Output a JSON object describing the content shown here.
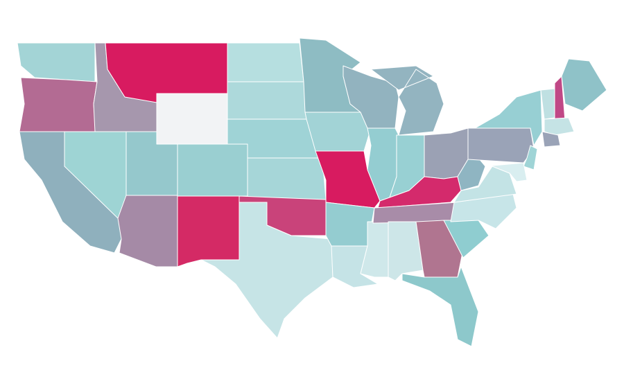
{
  "map": {
    "region_colors": [
      "#a3d4d6",
      "#b36b93",
      "#8fb0bd",
      "#a697ad",
      "#9ed4d4",
      "#d81b60",
      "#f2f3f5",
      "#95c8cc",
      "#9acfd1",
      "#a58aa6",
      "#d42a65",
      "#b6dfe0",
      "#add9db",
      "#9fd3d6",
      "#a6d6d8",
      "#c9437a",
      "#c6e4e6",
      "#8ebcc3",
      "#a2d3d6",
      "#d81b60",
      "#94ccd0",
      "#c5e3e6",
      "#92b3bf",
      "#94cdd1",
      "#cfe8ea",
      "#93b4c0",
      "#98d0d3",
      "#9ba1b4",
      "#d42a6c",
      "#a88ca8",
      "#cde6e8",
      "#b07590",
      "#8dc8cb",
      "#8fcdd0",
      "#c7e5e8",
      "#c3e3e5",
      "#8fb5c2",
      "#9aa3b7",
      "#97cfd3",
      "#9fd4d6",
      "#d9eef0",
      "#bfe0e2",
      "#c04886",
      "#8fc2c8",
      "#c5e3e5",
      "#9aa3b7"
    ]
  }
}
